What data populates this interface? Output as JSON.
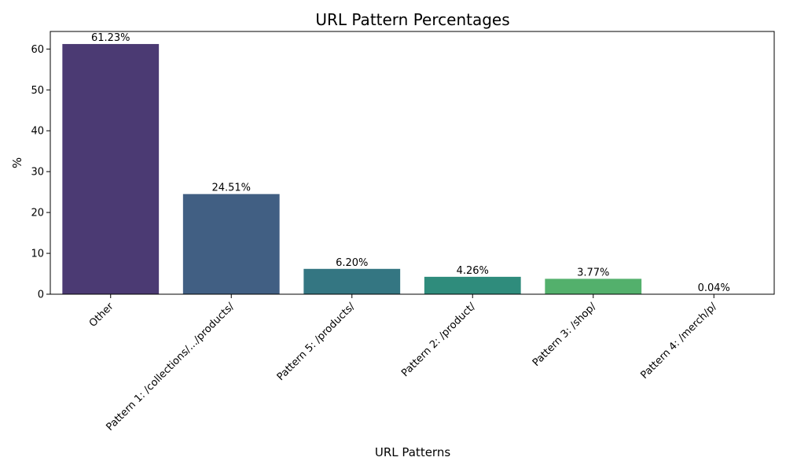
{
  "chart_data": {
    "type": "bar",
    "title": "URL Pattern Percentages",
    "xlabel": "URL Patterns",
    "ylabel": "%",
    "ylim": [
      0,
      64.3
    ],
    "yticks": [
      0,
      10,
      20,
      30,
      40,
      50,
      60
    ],
    "grid": false,
    "categories": [
      "Other",
      "Pattern 1: /collections/.../products/",
      "Pattern 5: /products/",
      "Pattern 2: /product/",
      "Pattern 3: /shop/",
      "Pattern 4: /merch/p/"
    ],
    "values": [
      61.23,
      24.51,
      6.2,
      4.26,
      3.77,
      0.04
    ],
    "data_labels": [
      "61.23%",
      "24.51%",
      "6.20%",
      "4.26%",
      "3.77%",
      "0.04%"
    ],
    "colors": [
      "#4b3a73",
      "#415f83",
      "#347682",
      "#2f8c7c",
      "#53b06c",
      "#a8d65a"
    ]
  }
}
